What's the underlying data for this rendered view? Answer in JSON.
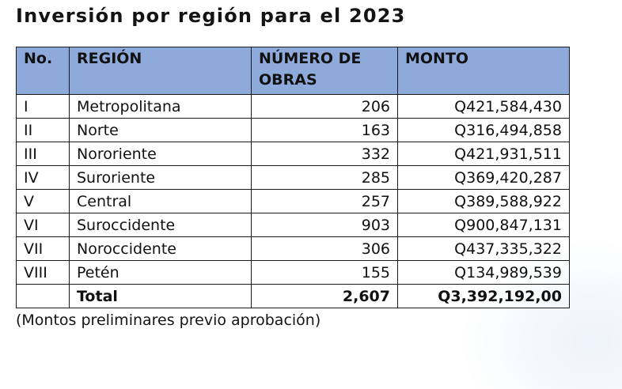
{
  "document": {
    "title": "Inversión por región para el 2023",
    "table": {
      "headers": [
        "No.",
        "REGIÓN",
        "NÚMERO DE OBRAS",
        "MONTO"
      ],
      "rows": [
        {
          "no": "I",
          "region": "Metropolitana",
          "obras": "206",
          "monto": "Q421,584,430"
        },
        {
          "no": "II",
          "region": "Norte",
          "obras": "163",
          "monto": "Q316,494,858"
        },
        {
          "no": "III",
          "region": "Nororiente",
          "obras": "332",
          "monto": "Q421,931,511"
        },
        {
          "no": "IV",
          "region": "Suroriente",
          "obras": "285",
          "monto": "Q369,420,287"
        },
        {
          "no": "V",
          "region": "Central",
          "obras": "257",
          "monto": "Q389,588,922"
        },
        {
          "no": "VI",
          "region": "Suroccidente",
          "obras": "903",
          "monto": "Q900,847,131"
        },
        {
          "no": "VII",
          "region": "Noroccidente",
          "obras": "306",
          "monto": "Q437,335,322"
        },
        {
          "no": "VIII",
          "region": "Petén",
          "obras": "155",
          "monto": "Q134,989,539"
        }
      ],
      "total": {
        "no": "",
        "label": "Total",
        "obras": "2,607",
        "monto": "Q3,392,192,00"
      }
    },
    "note": "(Montos preliminares previo aprobación)",
    "colors": {
      "header_bg": "#8eaadb",
      "border": "#1a1a1a",
      "text": "#141414"
    }
  }
}
